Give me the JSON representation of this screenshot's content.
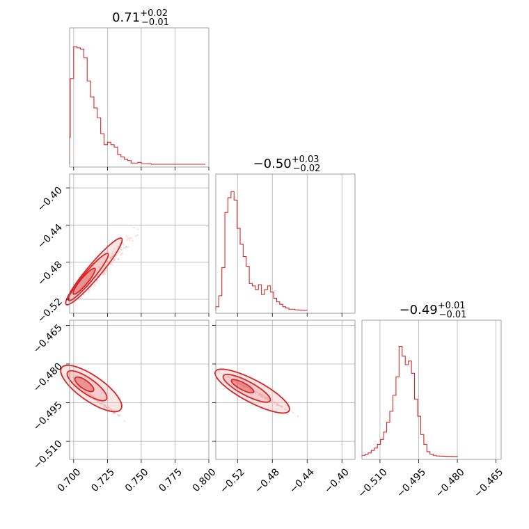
{
  "chart_data": [
    {
      "type": "histogram",
      "panel": "hist-param-1",
      "title": {
        "value": "0.71",
        "sup": "+0.02",
        "sub": "−0.01"
      },
      "xlim": [
        0.697,
        0.8
      ],
      "xticks": [
        "0.700",
        "0.725",
        "0.750",
        "0.775",
        "0.800"
      ],
      "xtick_values": [
        0.7,
        0.725,
        0.75,
        0.775,
        0.8
      ],
      "bin_edges_start": 0.695,
      "bin_width": 0.0025,
      "density": [
        0.22,
        0.7,
        0.96,
        0.95,
        0.94,
        0.87,
        0.68,
        0.55,
        0.46,
        0.38,
        0.25,
        0.16,
        0.18,
        0.16,
        0.14,
        0.08,
        0.06,
        0.04,
        0.03,
        0.01,
        0.01,
        0.015,
        0.005,
        0.005,
        0.003,
        0,
        0,
        0,
        0,
        0,
        0,
        0,
        0,
        0,
        0,
        0,
        0,
        0,
        0,
        0,
        0
      ],
      "grid": true,
      "color": "#d62728"
    },
    {
      "type": "histogram",
      "panel": "hist-param-2",
      "title": {
        "value": "−0.50",
        "sup": "+0.03",
        "sub": "−0.02"
      },
      "xlim": [
        -0.545,
        -0.385
      ],
      "xticks": [
        "−0.52",
        "−0.48",
        "−0.44",
        "−0.40"
      ],
      "xtick_values": [
        -0.52,
        -0.48,
        -0.44,
        -0.4
      ],
      "bin_edges_start": -0.545,
      "bin_width": 0.0035,
      "density": [
        0.03,
        0.12,
        0.35,
        0.8,
        0.92,
        0.97,
        0.9,
        0.67,
        0.54,
        0.44,
        0.36,
        0.22,
        0.2,
        0.17,
        0.21,
        0.13,
        0.17,
        0.2,
        0.15,
        0.1,
        0.07,
        0.05,
        0.03,
        0.02,
        0.01,
        0.01,
        0.005,
        0.003,
        0.002,
        0.001
      ],
      "grid": true,
      "color": "#d62728"
    },
    {
      "type": "histogram",
      "panel": "hist-param-3",
      "title": {
        "value": "−0.49",
        "sup": "+0.01",
        "sub": "−0.01"
      },
      "xlim": [
        -0.517,
        -0.463
      ],
      "xticks": [
        "−0.510",
        "−0.495",
        "−0.480",
        "−0.465"
      ],
      "xtick_values": [
        -0.51,
        -0.495,
        -0.48,
        -0.465
      ],
      "bin_edges_start": -0.517,
      "bin_width": 0.0012,
      "density": [
        0.01,
        0.02,
        0.03,
        0.05,
        0.07,
        0.1,
        0.14,
        0.2,
        0.28,
        0.37,
        0.5,
        0.65,
        0.9,
        0.82,
        0.75,
        0.78,
        0.68,
        0.47,
        0.33,
        0.18,
        0.1,
        0.04,
        0.02,
        0.01,
        0.005,
        0.004,
        0.003,
        0.002,
        0.002,
        0.001,
        0.001
      ],
      "grid": true,
      "color": "#d62728"
    },
    {
      "type": "contour",
      "panel": "contour-1-2",
      "xlim": [
        0.697,
        0.8
      ],
      "ylim": [
        -0.535,
        -0.385
      ],
      "yticks": [
        "−0.52",
        "−0.48",
        "−0.44",
        "−0.40"
      ],
      "ytick_values": [
        -0.52,
        -0.48,
        -0.44,
        -0.4
      ],
      "correlation": "strong positive linear",
      "color": "#d62728"
    },
    {
      "type": "contour",
      "panel": "contour-1-3",
      "xlim": [
        0.697,
        0.8
      ],
      "ylim": [
        -0.517,
        -0.463
      ],
      "yticks": [
        "−0.465",
        "−0.480",
        "−0.495",
        "−0.510"
      ],
      "ytick_values": [
        -0.465,
        -0.48,
        -0.495,
        -0.51
      ],
      "correlation": "negative",
      "color": "#d62728"
    },
    {
      "type": "contour",
      "panel": "contour-2-3",
      "xlim": [
        -0.545,
        -0.385
      ],
      "ylim": [
        -0.517,
        -0.463
      ],
      "correlation": "negative",
      "color": "#d62728"
    }
  ]
}
